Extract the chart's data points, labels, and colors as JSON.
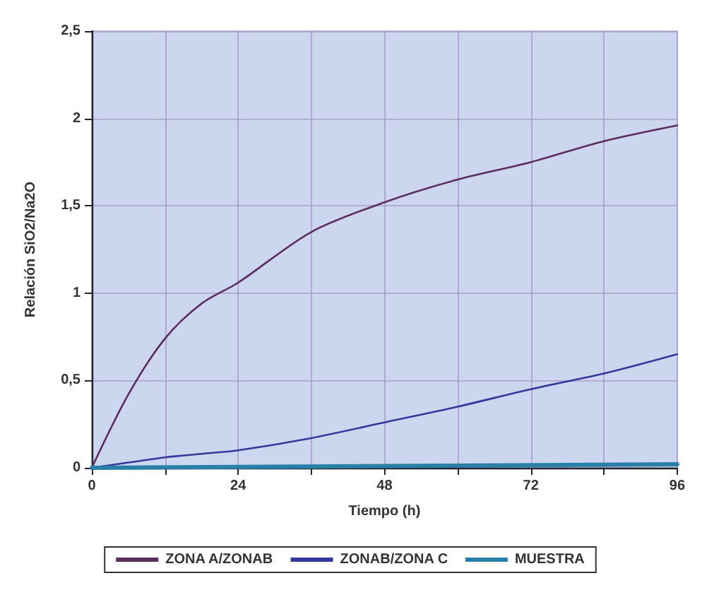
{
  "chart_data": {
    "type": "line",
    "xlabel": "Tiempo (h)",
    "ylabel": "Relación SiO2/Na2O",
    "x": [
      0,
      6,
      12,
      18,
      24,
      36,
      48,
      60,
      72,
      84,
      96
    ],
    "series": [
      {
        "name": "ZONA A/ZONAB",
        "color": "#5a2d5e",
        "values": [
          0,
          0.42,
          0.74,
          0.94,
          1.06,
          1.35,
          1.52,
          1.65,
          1.75,
          1.87,
          1.96
        ]
      },
      {
        "name": "ZONAB/ZONA C",
        "color": "#34389a",
        "values": [
          0,
          0.03,
          0.06,
          0.08,
          0.1,
          0.17,
          0.26,
          0.35,
          0.45,
          0.54,
          0.65
        ]
      },
      {
        "name": "MUESTRA",
        "color": "#2a7fa6",
        "x": [
          0,
          96
        ],
        "values": [
          0,
          0.02
        ]
      }
    ],
    "xlim": [
      0,
      96
    ],
    "xticks": [
      0,
      {
        "value": 12,
        "label": null
      },
      24,
      {
        "value": 36,
        "label": null
      },
      48,
      {
        "value": 60,
        "label": null
      },
      72,
      {
        "value": 84,
        "label": null
      },
      96
    ],
    "ylim": [
      0,
      2.5
    ],
    "yticks": [
      0,
      {
        "value": 0.5,
        "label": "0,5"
      },
      1,
      {
        "value": 1.5,
        "label": "1,5"
      },
      2,
      {
        "value": 2.5,
        "label": "2,5"
      }
    ],
    "grid": true,
    "legend": "bottom",
    "marker": "none",
    "line_style": "solid"
  }
}
